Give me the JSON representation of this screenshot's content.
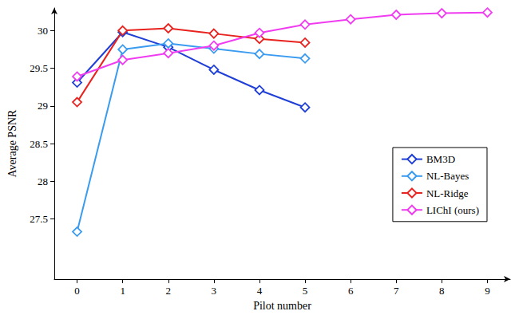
{
  "chart_data": {
    "type": "line",
    "x_label": "Pilot number",
    "y_label": "Average PSNR",
    "x": [
      0,
      1,
      2,
      3,
      4,
      5,
      6,
      7,
      8,
      9
    ],
    "xlim": [
      -0.5,
      9.5
    ],
    "xticks": [
      0,
      1,
      2,
      3,
      4,
      5,
      6,
      7,
      8,
      9
    ],
    "ylim": [
      26.7,
      30.3
    ],
    "yticks": [
      27.5,
      28,
      28.5,
      29,
      29.5,
      30
    ],
    "grid": false,
    "legend": "lower right",
    "marker": "diamond",
    "series": [
      {
        "name": "BM3D",
        "color": "#1f3fd6",
        "values": [
          29.31,
          29.98,
          29.78,
          29.48,
          29.21,
          28.98,
          null,
          null,
          null,
          null
        ]
      },
      {
        "name": "NL-Bayes",
        "color": "#3a9bf0",
        "values": [
          27.33,
          29.75,
          29.83,
          29.76,
          29.69,
          29.63,
          null,
          null,
          null,
          null
        ]
      },
      {
        "name": "NL-Ridge",
        "color": "#e8231f",
        "values": [
          29.05,
          30.0,
          30.03,
          29.96,
          29.89,
          29.84,
          null,
          null,
          null,
          null
        ]
      },
      {
        "name": "LIChI (ours)",
        "color": "#f03cf0",
        "values": [
          29.39,
          29.61,
          29.7,
          29.8,
          29.97,
          30.08,
          30.15,
          30.21,
          30.23,
          30.24
        ]
      }
    ]
  }
}
